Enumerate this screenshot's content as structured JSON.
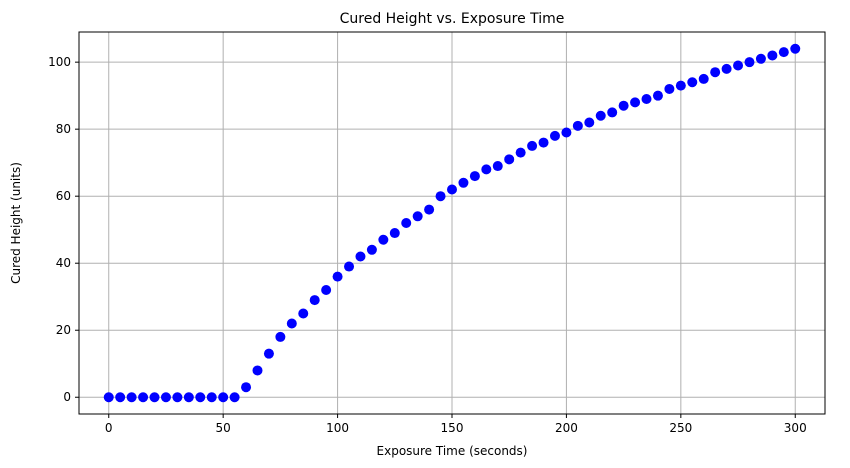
{
  "chart_data": {
    "type": "scatter",
    "title": "Cured Height vs. Exposure Time",
    "xlabel": "Exposure Time (seconds)",
    "ylabel": "Cured Height (units)",
    "xlim": [
      -13,
      313
    ],
    "ylim": [
      -5,
      109
    ],
    "xticks": [
      0,
      50,
      100,
      150,
      200,
      250,
      300
    ],
    "yticks": [
      0,
      20,
      40,
      60,
      80,
      100
    ],
    "grid": true,
    "marker_color": "#0000ff",
    "series": [
      {
        "x": [
          0,
          5,
          10,
          15,
          20,
          25,
          30,
          35,
          40,
          45,
          50,
          55,
          60,
          65,
          70,
          75,
          80,
          85,
          90,
          95,
          100,
          105,
          110,
          115,
          120,
          125,
          130,
          135,
          140,
          145,
          150,
          155,
          160,
          165,
          170,
          175,
          180,
          185,
          190,
          195,
          200,
          205,
          210,
          215,
          220,
          225,
          230,
          235,
          240,
          245,
          250,
          255,
          260,
          265,
          270,
          275,
          280,
          285,
          290,
          295,
          300
        ],
        "y": [
          0,
          0,
          0,
          0,
          0,
          0,
          0,
          0,
          0,
          0,
          0,
          0,
          3,
          8,
          13,
          18,
          22,
          25,
          29,
          32,
          36,
          39,
          42,
          44,
          47,
          49,
          52,
          54,
          56,
          60,
          62,
          64,
          66,
          68,
          69,
          71,
          73,
          75,
          76,
          78,
          79,
          81,
          82,
          84,
          85,
          87,
          88,
          89,
          90,
          92,
          93,
          94,
          95,
          97,
          98,
          99,
          100,
          101,
          102,
          103,
          104
        ]
      }
    ]
  }
}
